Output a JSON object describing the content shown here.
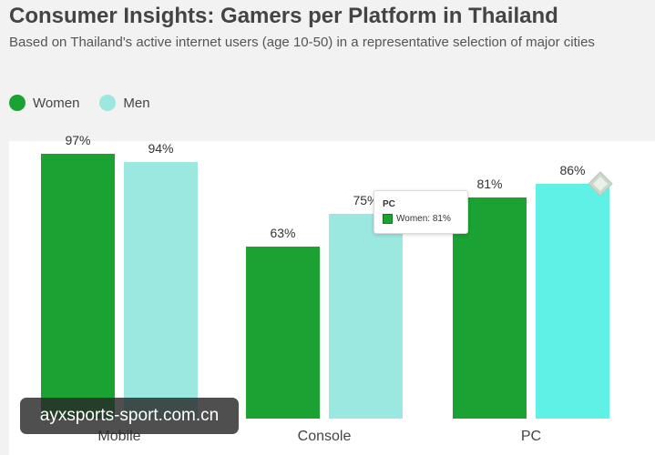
{
  "header": {
    "title": "Consumer Insights: Gamers per Platform in Thailand",
    "subtitle": "Based on Thailand's active internet users (age 10-50) in a representative selection of major cities"
  },
  "legend": {
    "items": [
      {
        "label": "Women",
        "color": "#1aa332"
      },
      {
        "label": "Men",
        "color": "#9be8e0"
      }
    ]
  },
  "tooltip": {
    "title": "PC",
    "row": "Women: 81%"
  },
  "watermark": "ayxsports-sport.com.cn",
  "chart_data": {
    "type": "bar",
    "categories": [
      "Mobile",
      "Console",
      "PC"
    ],
    "series": [
      {
        "name": "Women",
        "values": [
          97,
          63,
          81
        ],
        "colors": [
          "#1aa332",
          "#1aa332",
          "#1aa332"
        ]
      },
      {
        "name": "Men",
        "values": [
          94,
          75,
          86
        ],
        "colors": [
          "#9be8e0",
          "#9be8e0",
          "#5ff0e6"
        ]
      }
    ],
    "value_suffix": "%",
    "ylim": [
      0,
      100
    ],
    "grid": false,
    "legend_position": "top-left",
    "xlabel": "",
    "ylabel": ""
  }
}
